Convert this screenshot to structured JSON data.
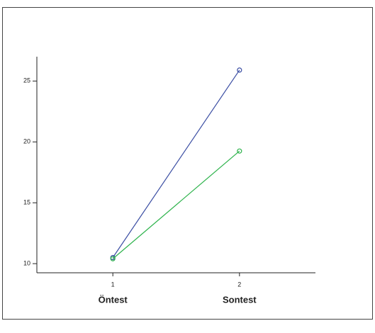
{
  "chart_data": {
    "type": "line",
    "x": [
      1,
      2
    ],
    "xticks": [
      1,
      2
    ],
    "xlim": [
      0.4,
      2.6
    ],
    "category_labels": [
      "Öntest",
      "Sontest"
    ],
    "ylim": [
      9.25,
      27
    ],
    "yticks": [
      10,
      15,
      20,
      25
    ],
    "series": [
      {
        "color": "#3b4ea3",
        "values": [
          10.5,
          25.9
        ]
      },
      {
        "color": "#2eb34c",
        "values": [
          10.4,
          19.25
        ]
      }
    ]
  }
}
